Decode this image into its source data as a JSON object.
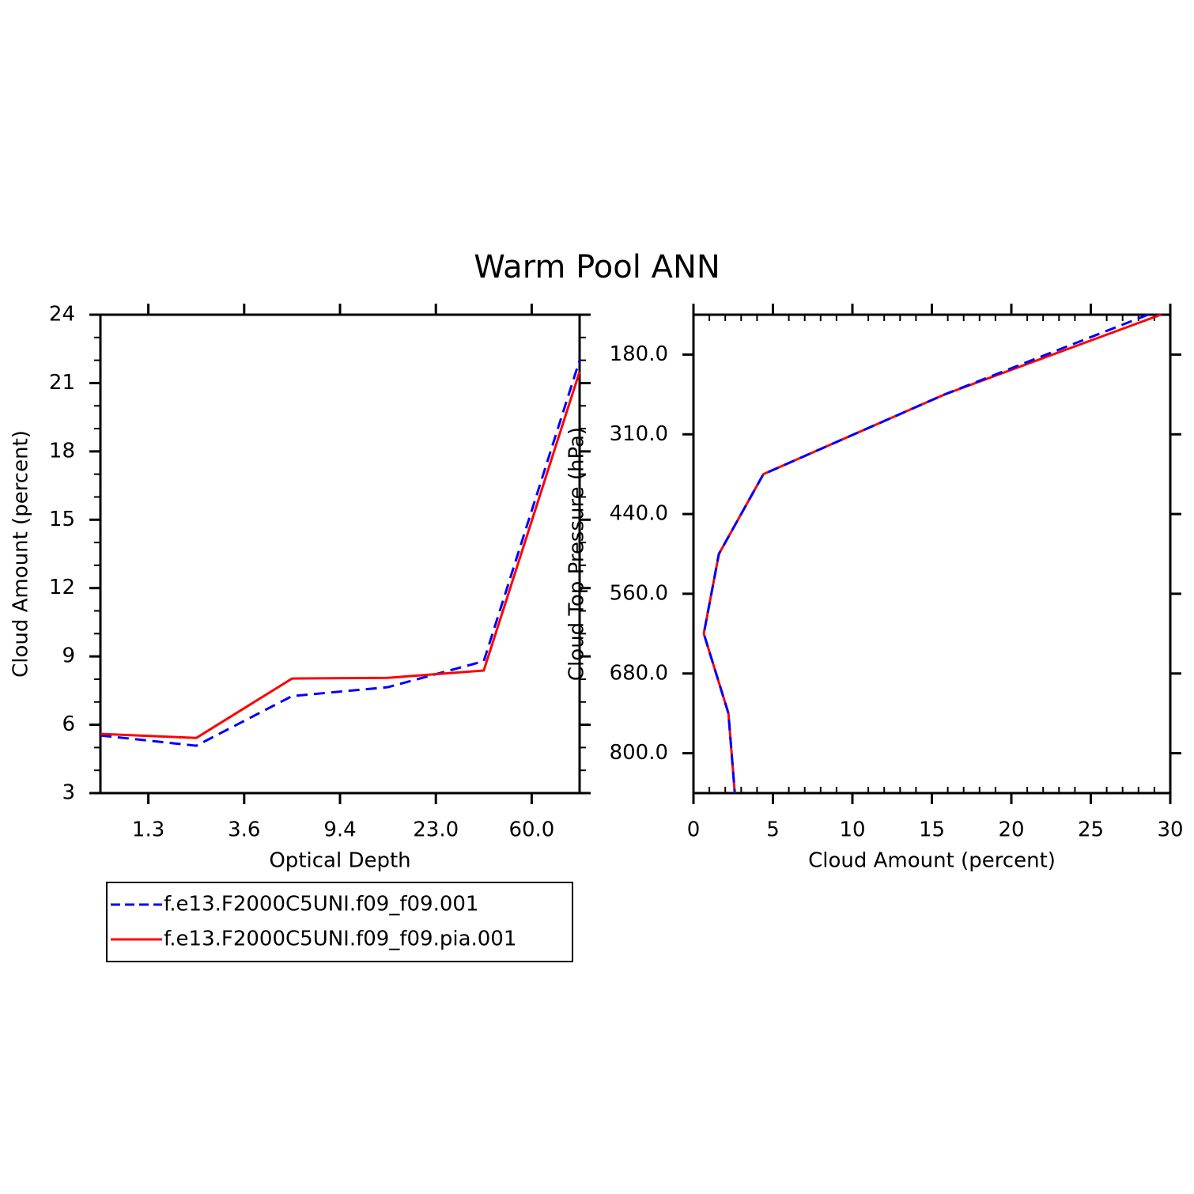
{
  "title": "Warm Pool ANN",
  "chart_data": [
    {
      "type": "line",
      "orientation": "vertical",
      "xlabel": "Optical Depth",
      "ylabel": "Cloud Amount (percent)",
      "x": [
        0,
        1,
        2,
        3,
        4,
        5
      ],
      "xlim": [
        0,
        5
      ],
      "xticks": [
        {
          "value": 0.5,
          "label": "1.3"
        },
        {
          "value": 1.5,
          "label": "3.6"
        },
        {
          "value": 2.5,
          "label": "9.4"
        },
        {
          "value": 3.5,
          "label": "23.0"
        },
        {
          "value": 4.5,
          "label": "60.0"
        }
      ],
      "ylim": [
        3,
        24
      ],
      "yticks": [
        3,
        6,
        9,
        12,
        15,
        18,
        21,
        24
      ],
      "legend": "below",
      "series": [
        {
          "name": "f.e13.F2000C5UNI.f09_f09.001",
          "color": "#0000ff",
          "style": "dashed",
          "values": [
            5.53,
            5.08,
            7.26,
            7.65,
            8.79,
            22.0
          ]
        },
        {
          "name": "f.e13.F2000C5UNI.f09_f09.pia.001",
          "color": "#ff0000",
          "style": "solid",
          "values": [
            5.6,
            5.42,
            8.03,
            8.06,
            8.38,
            21.5
          ]
        }
      ]
    },
    {
      "type": "line",
      "orientation": "horizontal",
      "xlabel": "Cloud Amount (percent)",
      "ylabel": "Cloud Top Pressure (hPa)",
      "y": [
        0,
        1,
        2,
        3,
        4,
        5,
        6
      ],
      "ylim": [
        6,
        0
      ],
      "yticks": [
        {
          "value": 0.5,
          "label": "180.0"
        },
        {
          "value": 1.5,
          "label": "310.0"
        },
        {
          "value": 2.5,
          "label": "440.0"
        },
        {
          "value": 3.5,
          "label": "560.0"
        },
        {
          "value": 4.5,
          "label": "680.0"
        },
        {
          "value": 5.5,
          "label": "800.0"
        }
      ],
      "xlim": [
        0,
        30
      ],
      "xticks": [
        0,
        5,
        10,
        15,
        20,
        25,
        30
      ],
      "series": [
        {
          "color": "#ff0000",
          "style": "solid",
          "values": [
            29.4,
            15.8,
            4.4,
            1.6,
            0.65,
            2.2,
            2.6
          ]
        },
        {
          "color": "#0000ff",
          "style": "dashed",
          "values": [
            28.6,
            15.8,
            4.4,
            1.6,
            0.65,
            2.2,
            2.6
          ]
        }
      ]
    }
  ]
}
